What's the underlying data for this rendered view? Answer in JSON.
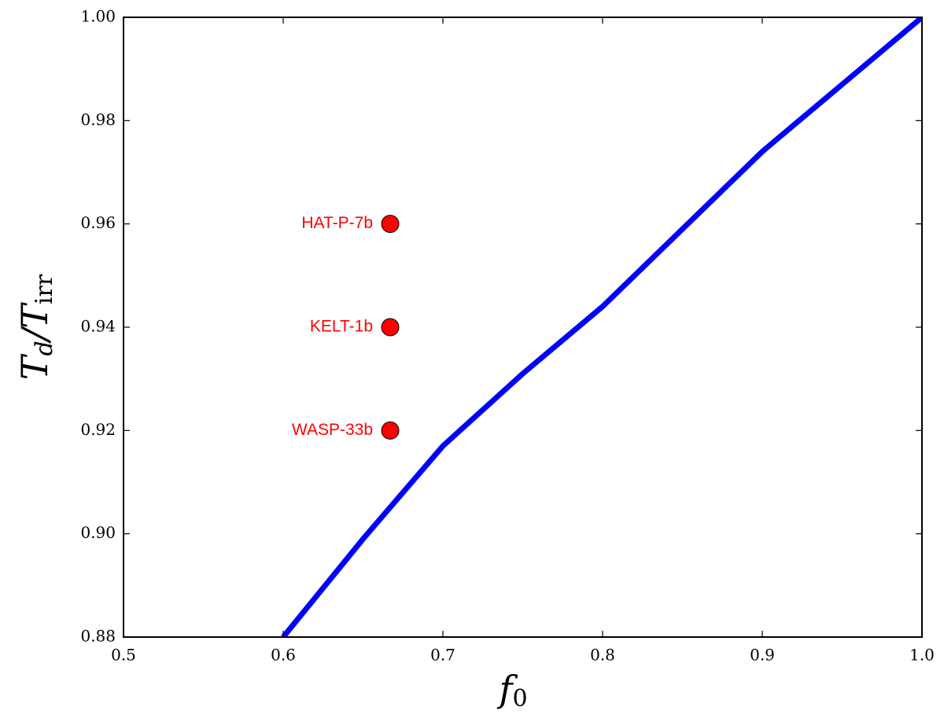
{
  "chart_data": {
    "type": "line",
    "xlabel": {
      "base": "f",
      "sub": "0"
    },
    "ylabel": {
      "base": "T",
      "sub": "d",
      "slash": "/T",
      "sub2": "irr"
    },
    "xlim": [
      0.5,
      1.0
    ],
    "ylim": [
      0.88,
      1.0
    ],
    "xticks": [
      0.5,
      0.6,
      0.7,
      0.8,
      0.9,
      {
        "value": 1,
        "label": "1.0"
      }
    ],
    "yticks": [
      0.88,
      {
        "value": 0.9,
        "label": "0.90"
      },
      0.92,
      0.94,
      0.96,
      0.98,
      {
        "value": 1,
        "label": "1.00"
      }
    ],
    "series": [
      {
        "color": "#0000ff",
        "x": [
          0.6,
          0.65,
          0.7,
          0.75,
          0.8,
          0.85,
          0.9,
          0.95,
          1.0
        ],
        "values": [
          0.88,
          0.899,
          0.917,
          0.931,
          0.944,
          0.959,
          0.974,
          0.987,
          1.0
        ]
      }
    ],
    "points": {
      "color": "#ff0000",
      "x": [
        0.667,
        0.667,
        0.667
      ],
      "values": [
        0.96,
        0.94,
        0.92
      ],
      "labels": [
        "HAT-P-7b",
        "KELT-1b",
        "WASP-33b"
      ]
    }
  }
}
